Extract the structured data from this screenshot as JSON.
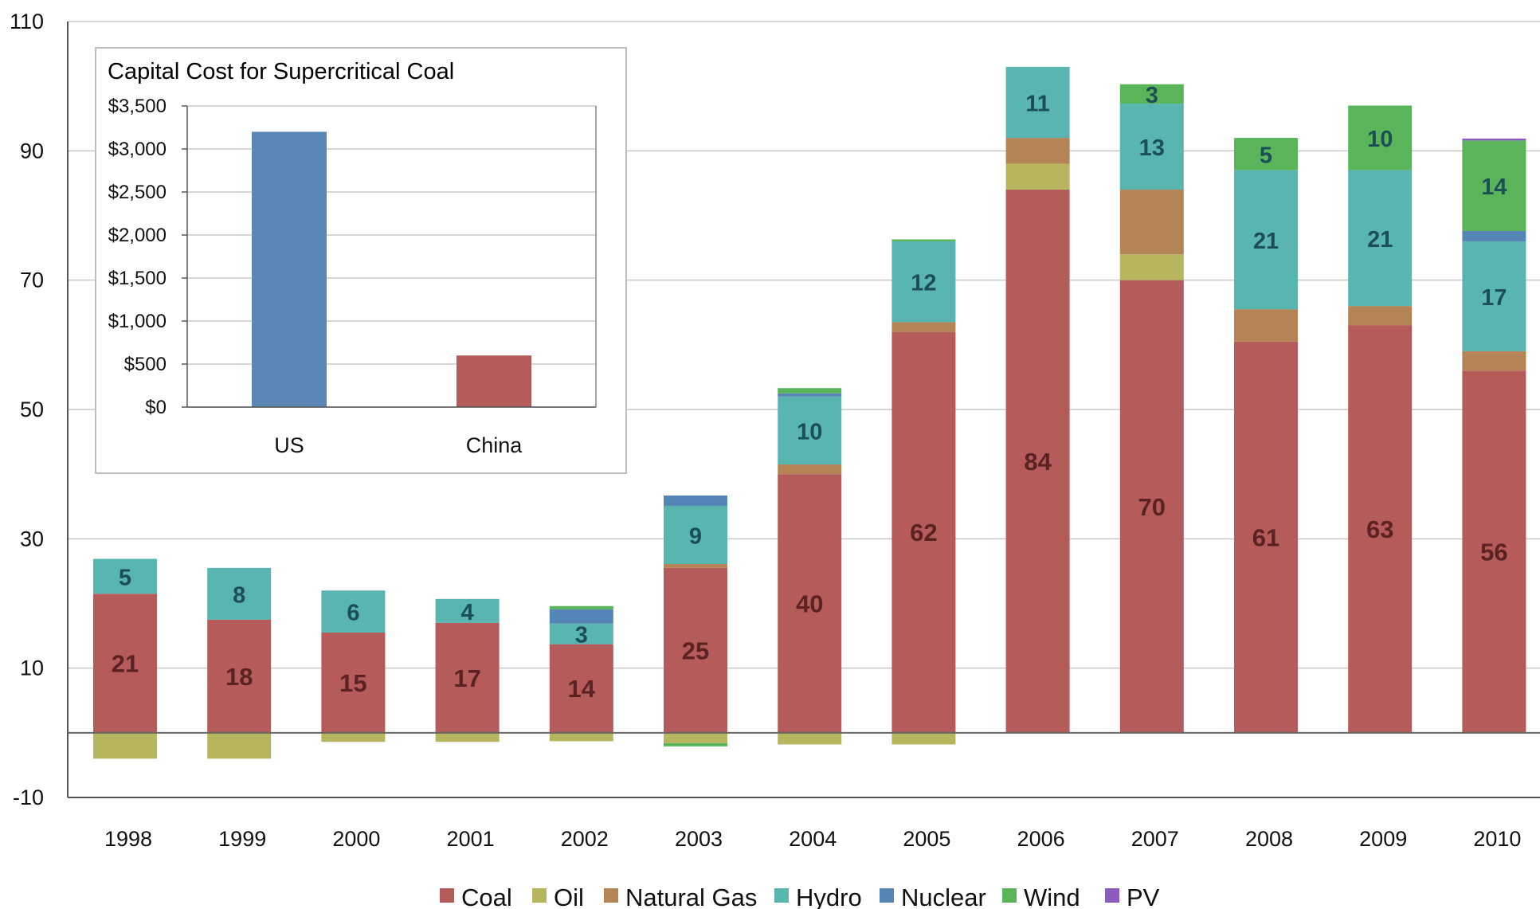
{
  "chart_data": [
    {
      "type": "bar",
      "stacked": true,
      "title": "",
      "xlabel": "",
      "ylabel": "",
      "ylim": [
        -10,
        110
      ],
      "yticks": [
        110,
        90,
        70,
        50,
        30,
        10,
        -10
      ],
      "grid": true,
      "legend_position": "bottom",
      "categories": [
        "1998",
        "1999",
        "2000",
        "2001",
        "2002",
        "2003",
        "2004",
        "2005",
        "2006",
        "2007",
        "2008",
        "2009",
        "2010"
      ],
      "series": [
        {
          "name": "Coal",
          "color": "#b55b59",
          "values": [
            21.5,
            17.5,
            15.5,
            17,
            13.7,
            25.5,
            40,
            62,
            84,
            70,
            60.5,
            63,
            56
          ]
        },
        {
          "name": "Oil",
          "color": "#b7b65e",
          "values": [
            -4,
            -4,
            -1.4,
            -1.4,
            -1.3,
            -1.6,
            -1.8,
            -1.8,
            4,
            4,
            0,
            0,
            0
          ]
        },
        {
          "name": "Natural Gas",
          "color": "#b58454",
          "values": [
            0,
            0,
            0,
            0,
            0,
            0.6,
            1.5,
            1.5,
            4,
            10,
            5,
            3,
            3
          ]
        },
        {
          "name": "Hydro",
          "color": "#59b5b0",
          "values": [
            5.4,
            8,
            6.5,
            3.7,
            3.2,
            9,
            10.5,
            12.5,
            11,
            13.3,
            21.5,
            21,
            17
          ]
        },
        {
          "name": "Nuclear",
          "color": "#5584b7",
          "values": [
            0,
            0,
            0,
            0,
            2.2,
            1.6,
            0.5,
            0,
            0,
            0,
            0,
            0,
            1.6
          ]
        },
        {
          "name": "Wind",
          "color": "#5ab55a",
          "values": [
            0,
            0,
            0,
            0,
            0.5,
            -0.5,
            0.8,
            0.3,
            0,
            3,
            5,
            10,
            14
          ]
        },
        {
          "name": "PV",
          "color": "#8c5bbf",
          "values": [
            0,
            0,
            0,
            0,
            0,
            0,
            0,
            0,
            0,
            0,
            0,
            0,
            0.3
          ]
        }
      ],
      "data_labels": [
        {
          "category": "1998",
          "series": "Coal",
          "text": "21"
        },
        {
          "category": "1998",
          "series": "Hydro",
          "text": "5"
        },
        {
          "category": "1999",
          "series": "Coal",
          "text": "18"
        },
        {
          "category": "1999",
          "series": "Hydro",
          "text": "8"
        },
        {
          "category": "2000",
          "series": "Coal",
          "text": "15"
        },
        {
          "category": "2000",
          "series": "Hydro",
          "text": "6"
        },
        {
          "category": "2001",
          "series": "Coal",
          "text": "17"
        },
        {
          "category": "2001",
          "series": "Hydro",
          "text": "4"
        },
        {
          "category": "2002",
          "series": "Coal",
          "text": "14"
        },
        {
          "category": "2002",
          "series": "Hydro",
          "text": "3"
        },
        {
          "category": "2003",
          "series": "Coal",
          "text": "25"
        },
        {
          "category": "2003",
          "series": "Hydro",
          "text": "9"
        },
        {
          "category": "2004",
          "series": "Coal",
          "text": "40"
        },
        {
          "category": "2004",
          "series": "Hydro",
          "text": "10"
        },
        {
          "category": "2005",
          "series": "Coal",
          "text": "62"
        },
        {
          "category": "2005",
          "series": "Hydro",
          "text": "12"
        },
        {
          "category": "2006",
          "series": "Coal",
          "text": "84"
        },
        {
          "category": "2006",
          "series": "Hydro",
          "text": "11"
        },
        {
          "category": "2007",
          "series": "Coal",
          "text": "70"
        },
        {
          "category": "2007",
          "series": "Hydro",
          "text": "13"
        },
        {
          "category": "2007",
          "series": "Wind",
          "text": "3"
        },
        {
          "category": "2008",
          "series": "Coal",
          "text": "61"
        },
        {
          "category": "2008",
          "series": "Hydro",
          "text": "21"
        },
        {
          "category": "2008",
          "series": "Wind",
          "text": "5"
        },
        {
          "category": "2009",
          "series": "Coal",
          "text": "63"
        },
        {
          "category": "2009",
          "series": "Hydro",
          "text": "21"
        },
        {
          "category": "2009",
          "series": "Wind",
          "text": "10"
        },
        {
          "category": "2010",
          "series": "Coal",
          "text": "56"
        },
        {
          "category": "2010",
          "series": "Hydro",
          "text": "17"
        },
        {
          "category": "2010",
          "series": "Wind",
          "text": "14"
        }
      ]
    },
    {
      "type": "bar",
      "title": "Capital Cost for Supercritical Coal",
      "xlabel": "",
      "ylabel": "",
      "ylim": [
        0,
        3500
      ],
      "yticks": [
        "$3,500",
        "$3,000",
        "$2,500",
        "$2,000",
        "$1,500",
        "$1,000",
        "$500",
        "$0"
      ],
      "ytick_values": [
        3500,
        3000,
        2500,
        2000,
        1500,
        1000,
        500,
        0
      ],
      "grid": true,
      "categories": [
        "US",
        "China"
      ],
      "values": [
        3200,
        600
      ],
      "colors": [
        "#5b87b7",
        "#b55b59"
      ]
    }
  ]
}
